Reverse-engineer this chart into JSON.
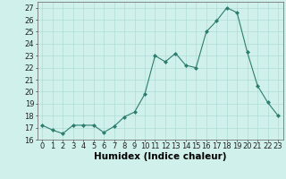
{
  "x": [
    0,
    1,
    2,
    3,
    4,
    5,
    6,
    7,
    8,
    9,
    10,
    11,
    12,
    13,
    14,
    15,
    16,
    17,
    18,
    19,
    20,
    21,
    22,
    23
  ],
  "y": [
    17.2,
    16.8,
    16.5,
    17.2,
    17.2,
    17.2,
    16.6,
    17.1,
    17.9,
    18.3,
    19.8,
    23.0,
    22.5,
    23.2,
    22.2,
    22.0,
    25.0,
    25.9,
    27.0,
    26.6,
    23.3,
    20.5,
    19.1,
    18.0
  ],
  "line_color": "#2d7d6e",
  "marker": "D",
  "marker_size": 2,
  "bg_color": "#cff0eb",
  "grid_color": "#b0ddd8",
  "xlabel": "Humidex (Indice chaleur)",
  "ylim": [
    16,
    27.5
  ],
  "xlim": [
    -0.5,
    23.5
  ],
  "yticks": [
    16,
    17,
    18,
    19,
    20,
    21,
    22,
    23,
    24,
    25,
    26,
    27
  ],
  "xticks": [
    0,
    1,
    2,
    3,
    4,
    5,
    6,
    7,
    8,
    9,
    10,
    11,
    12,
    13,
    14,
    15,
    16,
    17,
    18,
    19,
    20,
    21,
    22,
    23
  ],
  "tick_fontsize": 6,
  "xlabel_fontsize": 7.5
}
